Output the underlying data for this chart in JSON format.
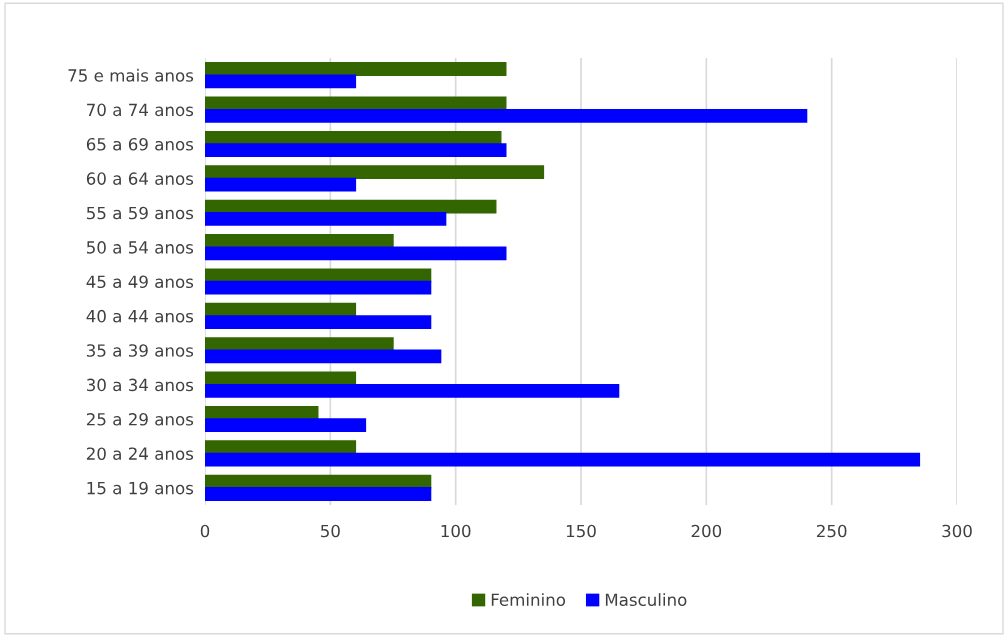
{
  "chart_data": {
    "type": "bar",
    "orientation": "horizontal",
    "categories": [
      "75 e mais anos",
      "70 a 74 anos",
      "65 a 69 anos",
      "60 a 64 anos",
      "55 a 59 anos",
      "50 a 54 anos",
      "45 a 49 anos",
      "40 a 44 anos",
      "35 a 39 anos",
      "30 a 34 anos",
      "25 a 29 anos",
      "20 a 24 anos",
      "15 a 19 anos"
    ],
    "series": [
      {
        "name": "Feminino",
        "color": "#336600",
        "values": [
          120,
          120,
          118,
          135,
          116,
          75,
          90,
          60,
          75,
          60,
          45,
          60,
          90
        ]
      },
      {
        "name": "Masculino",
        "color": "#0000ff",
        "values": [
          60,
          240,
          120,
          60,
          96,
          120,
          90,
          90,
          94,
          165,
          64,
          285,
          90
        ]
      }
    ],
    "xlim": [
      0,
      300
    ],
    "xticks": [
      0,
      50,
      100,
      150,
      200,
      250,
      300
    ],
    "grid": "x",
    "legend": "bottom"
  }
}
